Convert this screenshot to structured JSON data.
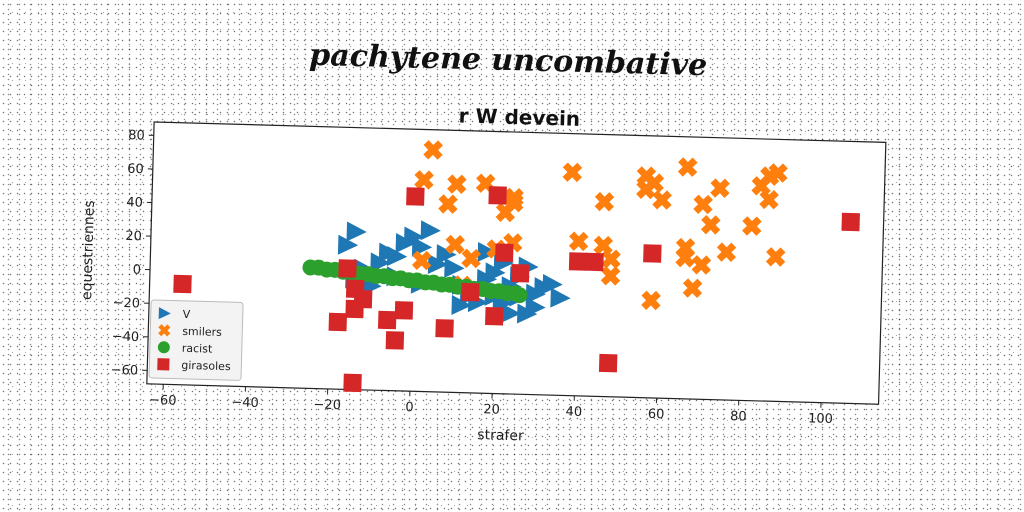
{
  "chart_data": {
    "type": "scatter",
    "suptitle": "pachytene uncombative",
    "title": "r W devein",
    "xlabel": "strafer",
    "ylabel": "equestriennes",
    "xlim": [
      -64,
      114
    ],
    "ylim": [
      -68,
      88
    ],
    "xticks": [
      -60,
      -40,
      -20,
      0,
      20,
      40,
      60,
      80,
      100
    ],
    "yticks": [
      -60,
      -40,
      -20,
      0,
      20,
      40,
      60,
      80
    ],
    "grid": false,
    "legend_position": "lower-left",
    "series": [
      {
        "name": "V",
        "marker": "triangle-right",
        "color": "#1f77b4",
        "points": [
          [
            -14,
            26
          ],
          [
            -6,
            14
          ],
          [
            -12,
            4
          ],
          [
            0,
            24
          ],
          [
            2,
            18
          ],
          [
            4,
            28
          ],
          [
            -4,
            12
          ],
          [
            -8,
            8
          ],
          [
            6,
            8
          ],
          [
            8,
            14
          ],
          [
            10,
            6
          ],
          [
            12,
            -4
          ],
          [
            14,
            -10
          ],
          [
            16,
            -14
          ],
          [
            18,
            0
          ],
          [
            20,
            4
          ],
          [
            22,
            10
          ],
          [
            22,
            -14
          ],
          [
            24,
            -4
          ],
          [
            24,
            -20
          ],
          [
            26,
            2
          ],
          [
            28,
            8
          ],
          [
            28,
            -20
          ],
          [
            30,
            -8
          ],
          [
            30,
            -16
          ],
          [
            32,
            -4
          ],
          [
            34,
            -2
          ],
          [
            36,
            -10
          ],
          [
            -2,
            20
          ],
          [
            -16,
            18
          ],
          [
            -10,
            -6
          ],
          [
            -14,
            -2
          ],
          [
            2,
            -4
          ],
          [
            18,
            16
          ],
          [
            12,
            -16
          ],
          [
            26,
            -10
          ],
          [
            20,
            -10
          ],
          [
            -4,
            0
          ]
        ]
      },
      {
        "name": "smilers",
        "marker": "x",
        "color": "#ff7f0e",
        "points": [
          [
            4,
            76
          ],
          [
            2,
            58
          ],
          [
            10,
            56
          ],
          [
            17,
            57
          ],
          [
            8,
            44
          ],
          [
            24,
            49
          ],
          [
            24,
            46
          ],
          [
            22,
            40
          ],
          [
            38,
            65
          ],
          [
            46,
            48
          ],
          [
            56,
            64
          ],
          [
            56,
            56
          ],
          [
            58,
            60
          ],
          [
            60,
            50
          ],
          [
            66,
            70
          ],
          [
            70,
            48
          ],
          [
            72,
            36
          ],
          [
            74,
            58
          ],
          [
            82,
            36
          ],
          [
            84,
            60
          ],
          [
            86,
            66
          ],
          [
            86,
            52
          ],
          [
            88,
            68
          ],
          [
            88,
            18
          ],
          [
            40,
            24
          ],
          [
            46,
            22
          ],
          [
            48,
            14
          ],
          [
            48,
            4
          ],
          [
            66,
            22
          ],
          [
            66,
            16
          ],
          [
            70,
            12
          ],
          [
            68,
            -2
          ],
          [
            76,
            20
          ],
          [
            58,
            -10
          ],
          [
            24,
            22
          ],
          [
            20,
            18
          ],
          [
            10,
            20
          ],
          [
            12,
            -4
          ],
          [
            2,
            10
          ],
          [
            14,
            12
          ]
        ]
      },
      {
        "name": "racist",
        "marker": "circle",
        "color": "#2ca02c",
        "points": [
          [
            -25,
            4
          ],
          [
            -23,
            4
          ],
          [
            -21,
            3
          ],
          [
            -19,
            3
          ],
          [
            -17,
            2
          ],
          [
            -15,
            2
          ],
          [
            -13,
            1
          ],
          [
            -11,
            1
          ],
          [
            -9,
            0
          ],
          [
            -7,
            0
          ],
          [
            -5,
            -1
          ],
          [
            -3,
            -1
          ],
          [
            -1,
            -2
          ],
          [
            1,
            -2
          ],
          [
            3,
            -3
          ],
          [
            5,
            -3
          ],
          [
            7,
            -4
          ],
          [
            9,
            -4
          ],
          [
            11,
            -5
          ],
          [
            13,
            -5
          ],
          [
            15,
            -6
          ],
          [
            17,
            -6
          ],
          [
            19,
            -7
          ],
          [
            21,
            -7
          ],
          [
            23,
            -8
          ],
          [
            25,
            -8
          ],
          [
            26,
            -9
          ]
        ]
      },
      {
        "name": "girasoles",
        "marker": "square",
        "color": "#d62728",
        "points": [
          [
            -56,
            -8
          ],
          [
            -16,
            4
          ],
          [
            -14,
            -8
          ],
          [
            -12,
            -14
          ],
          [
            -14,
            -20
          ],
          [
            -18,
            -28
          ],
          [
            -6,
            -26
          ],
          [
            -2,
            -20
          ],
          [
            -4,
            -38
          ],
          [
            0,
            48
          ],
          [
            8,
            -30
          ],
          [
            14,
            -8
          ],
          [
            20,
            -22
          ],
          [
            20,
            50
          ],
          [
            22,
            16
          ],
          [
            26,
            4
          ],
          [
            40,
            12
          ],
          [
            44,
            12
          ],
          [
            58,
            18
          ],
          [
            48,
            -48
          ],
          [
            106,
            40
          ],
          [
            -14,
            -64
          ]
        ]
      }
    ]
  }
}
